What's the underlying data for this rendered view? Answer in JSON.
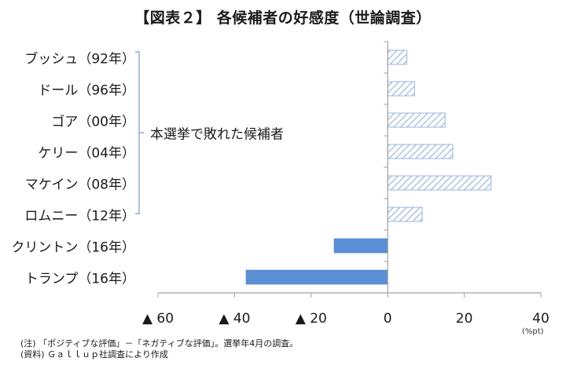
{
  "title": "【図表２】 各候補者の好感度（世論調査）",
  "annotation": "本選挙で敗れた候補者",
  "unit": "(%pt)",
  "notes": [
    "(注) 「ポジティブな評価」－「ネガティブな評価」。選挙年4月の調査。",
    "(資料) Ｇａｌｌｕｐ社調査により作成"
  ],
  "x_tick_labels": [
    "▲ 60",
    "▲ 40",
    "▲ 20",
    "0",
    "20",
    "40"
  ],
  "colors": {
    "solid_bar": "#5b8fd6",
    "hatched_bar": "#9bb5dd",
    "bracket": "#8fa9d6",
    "axis": "#a0a0a0"
  },
  "chart_data": {
    "type": "bar",
    "orientation": "horizontal",
    "title": "【図表２】 各候補者の好感度（世論調査）",
    "xlabel": "",
    "ylabel": "",
    "unit": "%pt",
    "xlim": [
      -60,
      40
    ],
    "x_ticks": [
      -60,
      -40,
      -20,
      0,
      20,
      40
    ],
    "grid": false,
    "categories": [
      "ブッシュ（92年）",
      "ドール（96年）",
      "ゴア（00年）",
      "ケリー（04年）",
      "マケイン（08年）",
      "ロムニー（12年）",
      "クリントン（16年）",
      "トランプ（16年）"
    ],
    "values": [
      5,
      7,
      15,
      17,
      27,
      9,
      -14,
      -37
    ],
    "styles": [
      "hatched",
      "hatched",
      "hatched",
      "hatched",
      "hatched",
      "hatched",
      "solid",
      "solid"
    ],
    "annotations": [
      {
        "text": "本選挙で敗れた候補者",
        "applies_to": [
          "ブッシュ（92年）",
          "ドール（96年）",
          "ゴア（00年）",
          "ケリー（04年）",
          "マケイン（08年）",
          "ロムニー（12年）"
        ]
      }
    ],
    "notes": [
      "(注) 「ポジティブな評価」－「ネガティブな評価」。選挙年4月の調査。",
      "(資料) Ｇａｌｌｕｐ社調査により作成"
    ]
  }
}
